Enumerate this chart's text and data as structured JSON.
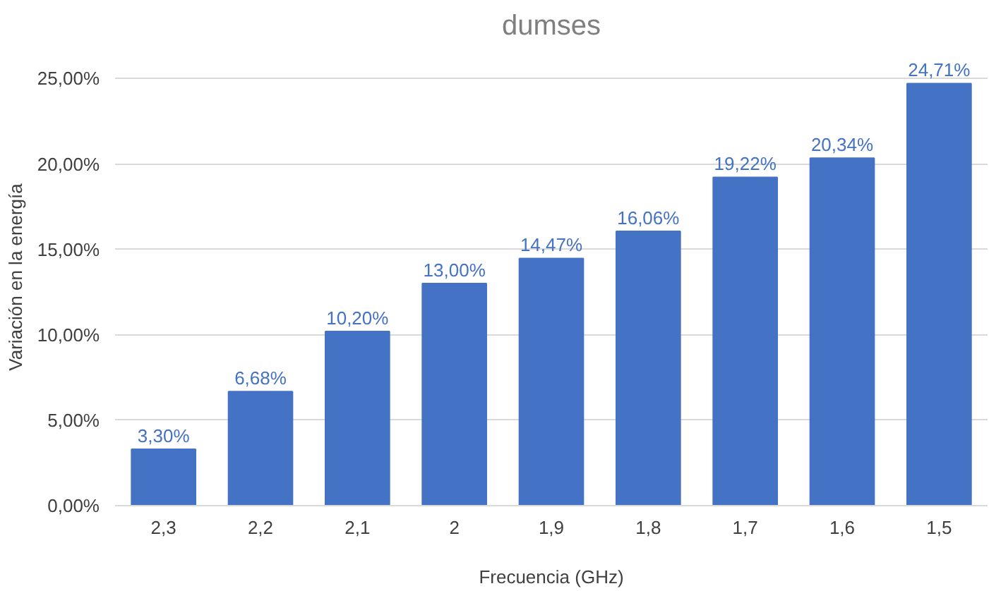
{
  "chart_data": {
    "type": "bar",
    "title": "dumses",
    "xlabel": "Frecuencia (GHz)",
    "ylabel": "Variación en la energía",
    "categories": [
      "2,3",
      "2,2",
      "2,1",
      "2",
      "1,9",
      "1,8",
      "1,7",
      "1,6",
      "1,5"
    ],
    "values": [
      3.3,
      6.68,
      10.2,
      13.0,
      14.47,
      16.06,
      19.22,
      20.34,
      24.71
    ],
    "value_labels": [
      "3,30%",
      "6,68%",
      "10,20%",
      "13,00%",
      "14,47%",
      "16,06%",
      "19,22%",
      "20,34%",
      "24,71%"
    ],
    "color": "#4472c4",
    "ylim": [
      0,
      25
    ],
    "yticks": [
      {
        "value": 0,
        "label": "0,00%"
      },
      {
        "value": 5,
        "label": "5,00%"
      },
      {
        "value": 10,
        "label": "10,00%"
      },
      {
        "value": 15,
        "label": "15,00%"
      },
      {
        "value": 20,
        "label": "20,00%"
      },
      {
        "value": 25,
        "label": "25,00%"
      }
    ],
    "grid": "y"
  }
}
